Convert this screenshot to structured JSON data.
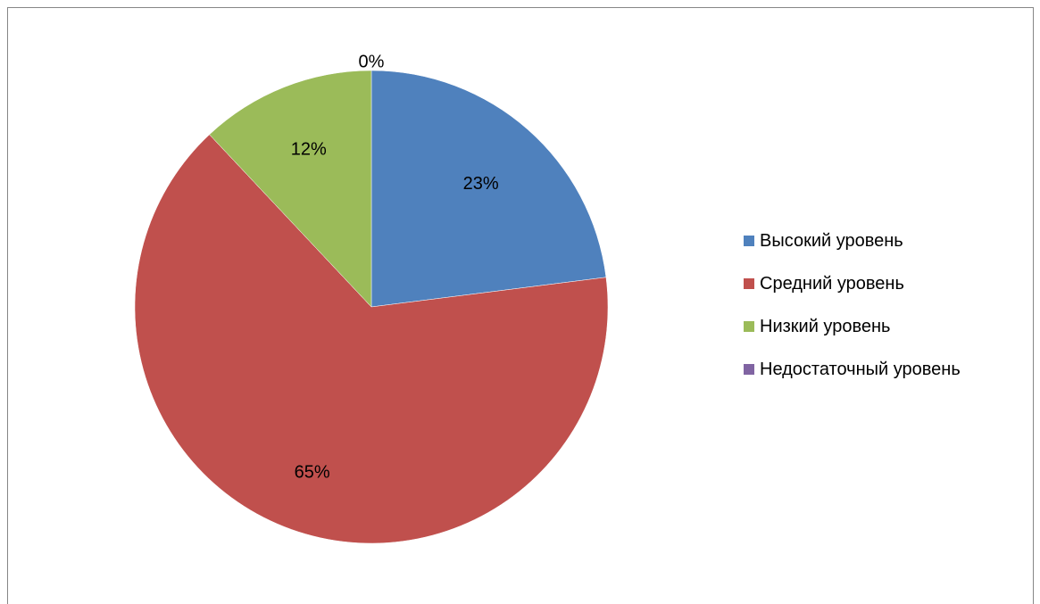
{
  "chart_data": {
    "type": "pie",
    "categories": [
      "Высокий уровень",
      "Средний уровень",
      "Низкий уровень",
      "Недостаточный уровень"
    ],
    "values": [
      23,
      65,
      12,
      0
    ],
    "data_labels": [
      "23%",
      "65%",
      "12%",
      "0%"
    ],
    "colors": [
      "#4F81BD",
      "#C0504D",
      "#9BBB59",
      "#8064A2"
    ],
    "legend_position": "right",
    "start_angle": "12 o'clock",
    "direction": "clockwise"
  }
}
